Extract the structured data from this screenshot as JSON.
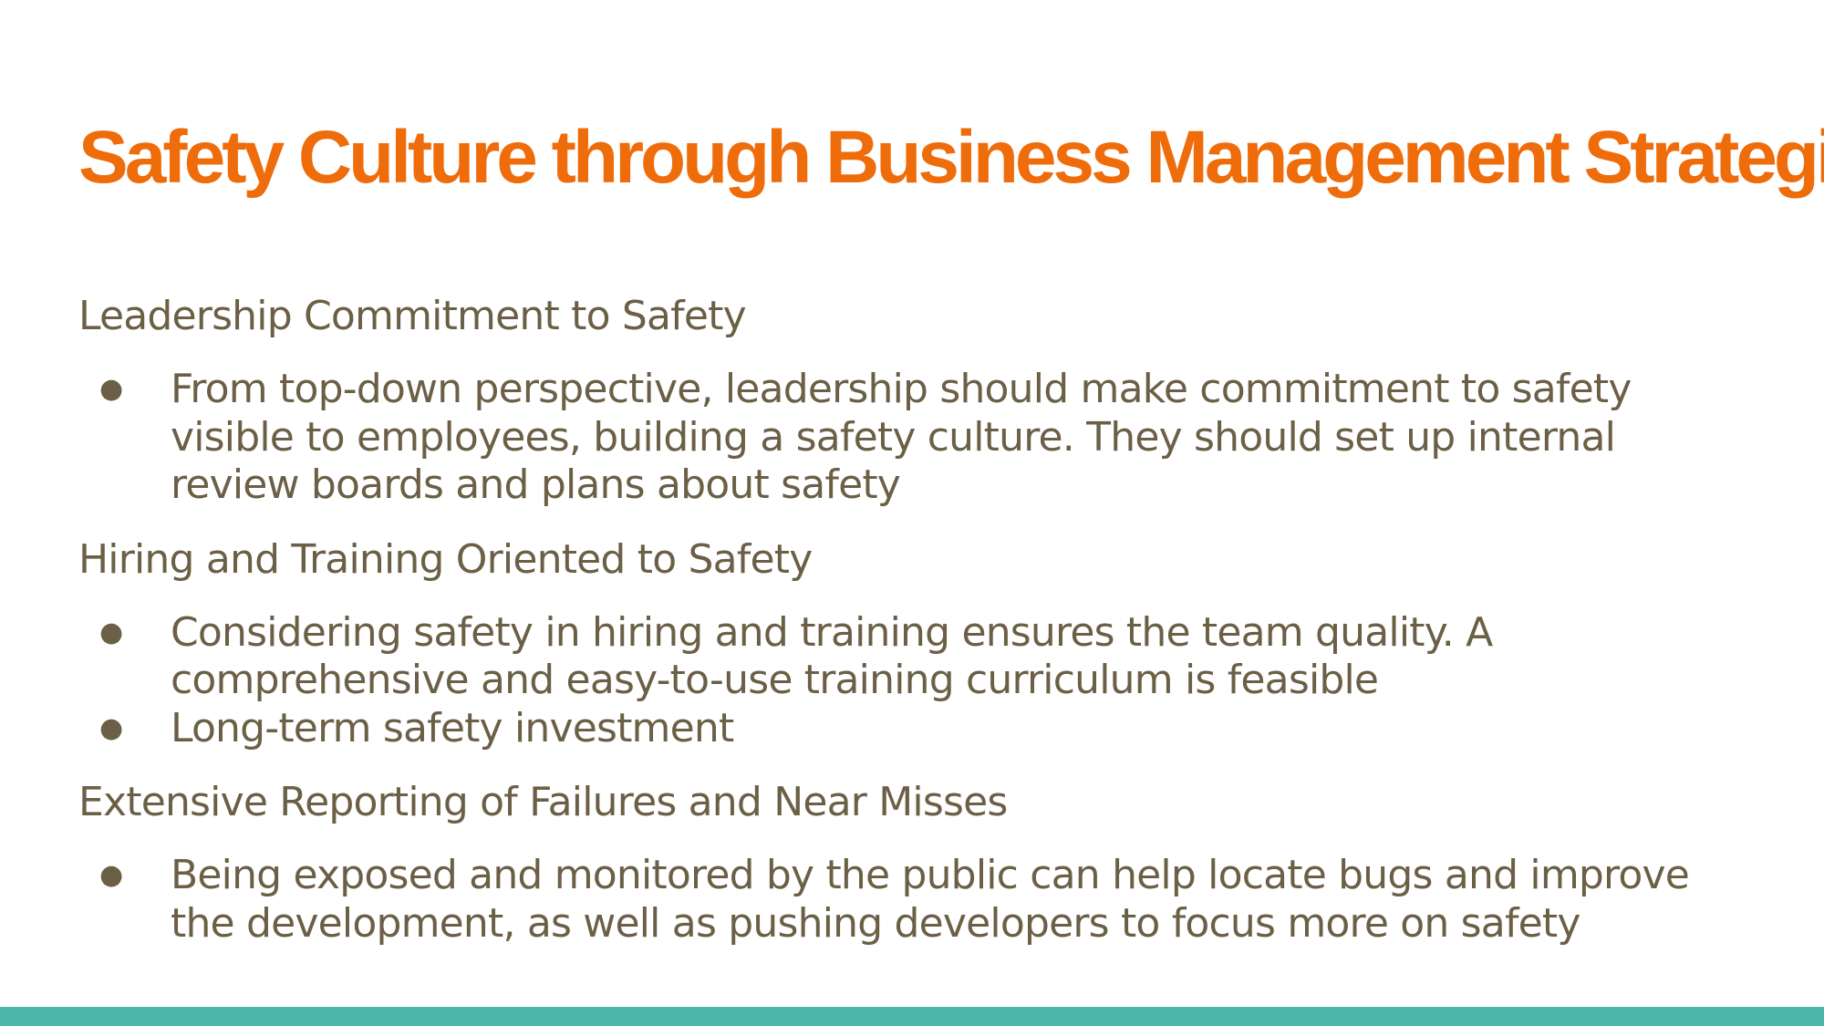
{
  "slide": {
    "title": "Safety Culture through Business Management Strategies",
    "sections": [
      {
        "heading": "Leadership Commitment to Safety",
        "bullets": [
          {
            "lines": [
              "From top-down perspective, leadership should make commitment to safety",
              "visible to employees, building a safety culture. They should set up internal",
              "review boards and plans about safety"
            ]
          }
        ]
      },
      {
        "heading": "Hiring and Training Oriented to Safety",
        "bullets": [
          {
            "lines": [
              "Considering safety in hiring and training ensures the team quality. A",
              "comprehensive and easy-to-use training curriculum is feasible"
            ]
          },
          {
            "lines": [
              "Long-term safety investment"
            ]
          }
        ]
      },
      {
        "heading": "Extensive Reporting of Failures and Near Misses",
        "bullets": [
          {
            "lines": [
              "Being exposed and monitored by the public can help locate bugs and improve",
              "the development, as well as pushing developers to focus more on safety"
            ]
          }
        ]
      }
    ],
    "bullet_glyph": "●"
  },
  "colors": {
    "title": "#ef6c0a",
    "body_text": "#6b5f46",
    "footer_bar": "#4db6ac",
    "background": "#ffffff"
  }
}
